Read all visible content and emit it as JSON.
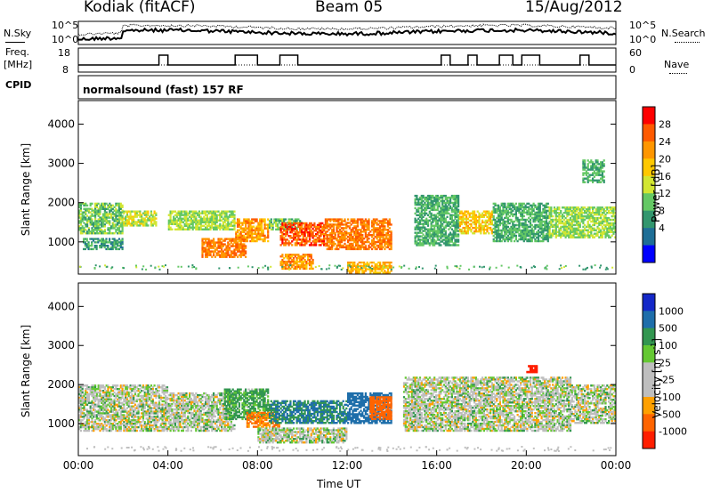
{
  "header": {
    "station": "Kodiak (fitACF)",
    "beam": "Beam 05",
    "date": "15/Aug/2012",
    "cpid_label": "CPID",
    "program": "normalsound (fast) 157 RF"
  },
  "strips": {
    "nsky_label": "N.Sky",
    "nsearch_label": "N.Search",
    "freq_label": "Freq.",
    "freq_unit": "[MHz]",
    "nave_label": "Nave",
    "noise_ticks_left": [
      "10^5",
      "10^0"
    ],
    "noise_ticks_right": [
      "10^5",
      "10^0"
    ],
    "freq_ticks": [
      "18",
      "8"
    ],
    "nave_ticks": [
      "60",
      "0"
    ]
  },
  "axes": {
    "ylabel": "Slant Range [km]",
    "xlabel": "Time UT",
    "yticks": [
      "4000",
      "3000",
      "2000",
      "1000"
    ],
    "xticks": [
      "00:00",
      "04:00",
      "08:00",
      "12:00",
      "16:00",
      "20:00",
      "00:00"
    ]
  },
  "power_scale": {
    "label": "Power [dB]",
    "ticks": [
      "28",
      "24",
      "20",
      "16",
      "12",
      "8",
      "4"
    ],
    "colors": [
      "#ff0000",
      "#ff5a00",
      "#ff9600",
      "#ffc800",
      "#d2e632",
      "#64c864",
      "#32966e",
      "#1e6e96",
      "#0000ff"
    ]
  },
  "velocity_scale": {
    "label": "Velocity [m s",
    "label_sup": "-1",
    "label_end": "]",
    "ticks": [
      "1000",
      "500",
      "100",
      "25",
      "-25",
      "-100",
      "-500",
      "-1000"
    ],
    "colors": [
      "#1428c8",
      "#1e6eaa",
      "#329650",
      "#64c832",
      "#bebebe",
      "#bebebe",
      "#ffa000",
      "#ff6400",
      "#ff1e00"
    ]
  },
  "chart_data": [
    {
      "type": "heatmap",
      "title": "",
      "quantity": "Power",
      "unit": "dB",
      "xlabel": "Time UT",
      "ylabel": "Slant Range [km]",
      "x_range_hours": [
        0,
        24
      ],
      "ylim_km": [
        180,
        4600
      ],
      "color_range": [
        0,
        32
      ],
      "regions": [
        {
          "t": [
            0.0,
            2.0
          ],
          "r": [
            1200,
            2000
          ],
          "value": 12
        },
        {
          "t": [
            0.2,
            2.0
          ],
          "r": [
            800,
            1100
          ],
          "value": 8
        },
        {
          "t": [
            2.0,
            3.5
          ],
          "r": [
            1400,
            1800
          ],
          "value": 16
        },
        {
          "t": [
            4.0,
            7.0
          ],
          "r": [
            1300,
            1800
          ],
          "value": 14
        },
        {
          "t": [
            5.5,
            7.5
          ],
          "r": [
            600,
            1100
          ],
          "value": 26
        },
        {
          "t": [
            7.0,
            8.5
          ],
          "r": [
            1000,
            1600
          ],
          "value": 24
        },
        {
          "t": [
            8.5,
            10.0
          ],
          "r": [
            1300,
            1600
          ],
          "value": 12
        },
        {
          "t": [
            9.0,
            11.0
          ],
          "r": [
            900,
            1500
          ],
          "value": 28
        },
        {
          "t": [
            9.0,
            10.5
          ],
          "r": [
            300,
            700
          ],
          "value": 24
        },
        {
          "t": [
            11.0,
            14.0
          ],
          "r": [
            800,
            1600
          ],
          "value": 26
        },
        {
          "t": [
            12.0,
            14.0
          ],
          "r": [
            200,
            500
          ],
          "value": 22
        },
        {
          "t": [
            15.0,
            17.0
          ],
          "r": [
            900,
            2200
          ],
          "value": 10
        },
        {
          "t": [
            17.0,
            18.5
          ],
          "r": [
            1200,
            1800
          ],
          "value": 20
        },
        {
          "t": [
            18.5,
            21.0
          ],
          "r": [
            1000,
            2000
          ],
          "value": 10
        },
        {
          "t": [
            21.0,
            24.0
          ],
          "r": [
            1100,
            1900
          ],
          "value": 14
        },
        {
          "t": [
            22.5,
            23.5
          ],
          "r": [
            2500,
            3100
          ],
          "value": 10
        }
      ]
    },
    {
      "type": "heatmap",
      "title": "",
      "quantity": "Velocity",
      "unit": "m s^-1",
      "xlabel": "Time UT",
      "ylabel": "Slant Range [km]",
      "x_range_hours": [
        0,
        24
      ],
      "ylim_km": [
        180,
        4600
      ],
      "color_range": [
        -1000,
        1000
      ],
      "regions": [
        {
          "t": [
            0.0,
            4.0
          ],
          "r": [
            800,
            2000
          ],
          "value": 0
        },
        {
          "t": [
            4.0,
            7.0
          ],
          "r": [
            800,
            1800
          ],
          "value": 0
        },
        {
          "t": [
            6.5,
            8.5
          ],
          "r": [
            1100,
            1900
          ],
          "value": 100
        },
        {
          "t": [
            7.5,
            9.0
          ],
          "r": [
            900,
            1300
          ],
          "value": -300
        },
        {
          "t": [
            8.5,
            12.0
          ],
          "r": [
            1000,
            1600
          ],
          "value": 300
        },
        {
          "t": [
            8.0,
            12.0
          ],
          "r": [
            500,
            900
          ],
          "value": 0
        },
        {
          "t": [
            12.0,
            14.0
          ],
          "r": [
            1000,
            1800
          ],
          "value": 400
        },
        {
          "t": [
            13.0,
            14.0
          ],
          "r": [
            1100,
            1700
          ],
          "value": -400
        },
        {
          "t": [
            14.5,
            22.0
          ],
          "r": [
            800,
            2200
          ],
          "value": 0
        },
        {
          "t": [
            20.0,
            20.5
          ],
          "r": [
            2300,
            2500
          ],
          "value": -800
        },
        {
          "t": [
            22.0,
            24.0
          ],
          "r": [
            1000,
            2000
          ],
          "value": 0
        }
      ]
    }
  ]
}
